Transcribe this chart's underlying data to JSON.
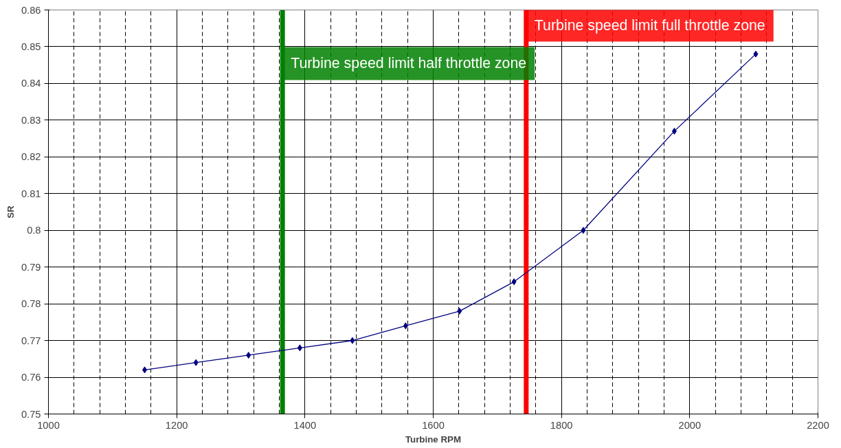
{
  "chart_data": {
    "type": "line",
    "xlabel": "Turbine RPM",
    "ylabel": "SR",
    "x": [
      1150,
      1230,
      1312,
      1392,
      1474,
      1557,
      1641,
      1726,
      1834,
      1976,
      2103
    ],
    "series": [
      {
        "color": "#000080",
        "values": [
          0.762,
          0.764,
          0.766,
          0.768,
          0.77,
          0.774,
          0.778,
          0.786,
          0.8,
          0.827,
          0.848
        ]
      }
    ],
    "marker": "diamond",
    "line_style": "solid",
    "grid": true,
    "xlim": [
      1000,
      2200
    ],
    "xticks": [
      1000,
      1200,
      1400,
      1600,
      1800,
      2000,
      2200
    ],
    "ylim": [
      0.75,
      0.86
    ],
    "yticks": [
      0.75,
      0.76,
      0.77,
      0.78,
      0.79,
      0.8,
      0.81,
      0.82,
      0.83,
      0.84,
      0.85,
      0.86
    ],
    "ref_lines": [
      {
        "axis": "x",
        "value": 1745,
        "label": "Turbine speed limit full throttle zone",
        "color": "#ff0000",
        "line_style": "solid"
      },
      {
        "axis": "x",
        "value": 1365,
        "label": "Turbine speed limit half throttle zone",
        "color": "#008000",
        "line_style": "solid"
      }
    ]
  }
}
